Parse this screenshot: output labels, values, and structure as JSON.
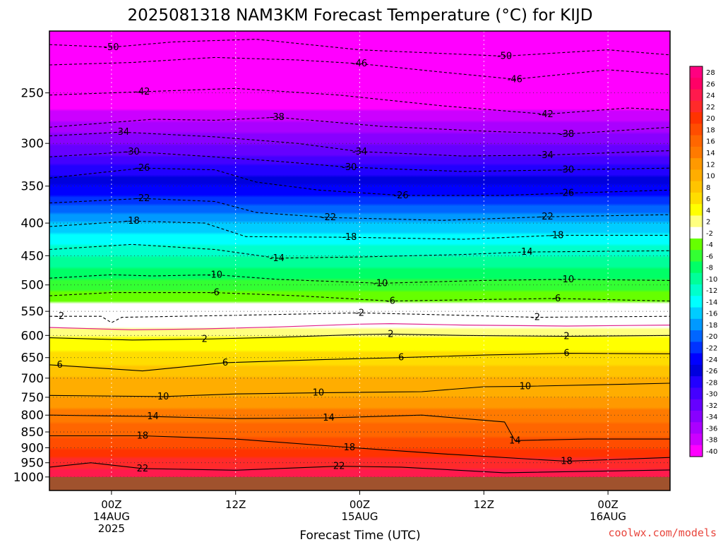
{
  "chart_data": {
    "type": "heatmap",
    "title": "2025081318 NAM3KM Forecast Temperature (°C) for KIJD",
    "xlabel": "Forecast Time (UTC)",
    "ylabel": "",
    "x_ticks": [
      {
        "hour": 6,
        "lines": [
          "00Z",
          "14AUG",
          "2025"
        ]
      },
      {
        "hour": 18,
        "lines": [
          "12Z"
        ]
      },
      {
        "hour": 30,
        "lines": [
          "00Z",
          "15AUG"
        ]
      },
      {
        "hour": 42,
        "lines": [
          "12Z"
        ]
      },
      {
        "hour": 54,
        "lines": [
          "00Z",
          "16AUG"
        ]
      }
    ],
    "xlim": [
      0,
      60
    ],
    "y_scale": "log",
    "ylim": [
      1050,
      200
    ],
    "y_ticks": [
      250,
      300,
      350,
      400,
      450,
      500,
      550,
      600,
      650,
      700,
      750,
      800,
      850,
      900,
      950,
      1000
    ],
    "grid": "dotted",
    "colorbar": {
      "labels": [
        28,
        26,
        24,
        22,
        20,
        18,
        16,
        14,
        12,
        10,
        8,
        6,
        4,
        2,
        -2,
        -4,
        -6,
        -8,
        -10,
        -12,
        -14,
        -16,
        -18,
        -20,
        -22,
        -24,
        -26,
        -28,
        -30,
        -32,
        -34,
        -36,
        -38,
        -40
      ],
      "colors": [
        "#ff0080",
        "#ff0066",
        "#ff1a4d",
        "#ff2a2a",
        "#ff3300",
        "#ff4d00",
        "#ff6600",
        "#ff7a00",
        "#ff9900",
        "#ffad00",
        "#ffc400",
        "#ffdd00",
        "#ffff00",
        "#ffff80",
        "#ffffff",
        "#66ff00",
        "#33ff33",
        "#00ff66",
        "#00ff99",
        "#00ffcc",
        "#00ffff",
        "#00ccff",
        "#0099ff",
        "#0066ff",
        "#0033ff",
        "#0000ff",
        "#0000dd",
        "#2200ff",
        "#4400ff",
        "#6600ff",
        "#8800ff",
        "#aa00ff",
        "#cc00ff",
        "#ff00ff"
      ]
    },
    "temperature_profile": [
      {
        "p": 1000,
        "t": 25
      },
      {
        "p": 950,
        "t": 22
      },
      {
        "p": 900,
        "t": 19
      },
      {
        "p": 850,
        "t": 16
      },
      {
        "p": 800,
        "t": 14
      },
      {
        "p": 750,
        "t": 11
      },
      {
        "p": 700,
        "t": 9
      },
      {
        "p": 650,
        "t": 6
      },
      {
        "p": 600,
        "t": 3
      },
      {
        "p": 560,
        "t": 0
      },
      {
        "p": 500,
        "t": -6
      },
      {
        "p": 450,
        "t": -11
      },
      {
        "p": 400,
        "t": -17
      },
      {
        "p": 350,
        "t": -25
      },
      {
        "p": 300,
        "t": -33
      },
      {
        "p": 250,
        "t": -42
      },
      {
        "p": 200,
        "t": -50
      }
    ],
    "contours": [
      {
        "label": "-50",
        "style": "dashed",
        "labels_at": [
          [
            6,
            212
          ],
          [
            44,
            219
          ]
        ],
        "points": [
          [
            0,
            210
          ],
          [
            6,
            212
          ],
          [
            12,
            208
          ],
          [
            20,
            206
          ],
          [
            30,
            214
          ],
          [
            44,
            219
          ],
          [
            54,
            214
          ],
          [
            60,
            218
          ]
        ]
      },
      {
        "label": "-46",
        "style": "dashed",
        "labels_at": [
          [
            30,
            225
          ],
          [
            45,
            238
          ]
        ],
        "points": [
          [
            0,
            226
          ],
          [
            8,
            224
          ],
          [
            16,
            220
          ],
          [
            24,
            222
          ],
          [
            30,
            225
          ],
          [
            38,
            232
          ],
          [
            45,
            238
          ],
          [
            54,
            230
          ],
          [
            60,
            234
          ]
        ]
      },
      {
        "label": "-42",
        "style": "dashed",
        "labels_at": [
          [
            9,
            249
          ],
          [
            48,
            270
          ]
        ],
        "points": [
          [
            0,
            252
          ],
          [
            9,
            249
          ],
          [
            18,
            246
          ],
          [
            28,
            252
          ],
          [
            38,
            262
          ],
          [
            48,
            270
          ],
          [
            56,
            264
          ],
          [
            60,
            266
          ]
        ]
      },
      {
        "label": "-38",
        "style": "dashed",
        "labels_at": [
          [
            22,
            273
          ],
          [
            50,
            290
          ]
        ],
        "points": [
          [
            0,
            283
          ],
          [
            10,
            275
          ],
          [
            16,
            276
          ],
          [
            22,
            273
          ],
          [
            32,
            282
          ],
          [
            42,
            287
          ],
          [
            50,
            290
          ],
          [
            60,
            283
          ]
        ]
      },
      {
        "label": "-34",
        "style": "dashed",
        "labels_at": [
          [
            7,
            288
          ],
          [
            30,
            309
          ],
          [
            48,
            313
          ]
        ],
        "points": [
          [
            0,
            292
          ],
          [
            7,
            288
          ],
          [
            16,
            293
          ],
          [
            24,
            300
          ],
          [
            30,
            309
          ],
          [
            40,
            314
          ],
          [
            48,
            313
          ],
          [
            60,
            308
          ]
        ]
      },
      {
        "label": "-30",
        "style": "dashed",
        "labels_at": [
          [
            8,
            309
          ],
          [
            29,
            327
          ],
          [
            50,
            330
          ]
        ],
        "points": [
          [
            0,
            315
          ],
          [
            8,
            309
          ],
          [
            16,
            315
          ],
          [
            22,
            320
          ],
          [
            29,
            327
          ],
          [
            40,
            332
          ],
          [
            50,
            330
          ],
          [
            60,
            328
          ]
        ]
      },
      {
        "label": "-26",
        "style": "dashed",
        "labels_at": [
          [
            9,
            328
          ],
          [
            34,
            362
          ],
          [
            50,
            359
          ]
        ],
        "points": [
          [
            0,
            340
          ],
          [
            9,
            328
          ],
          [
            16,
            330
          ],
          [
            20,
            345
          ],
          [
            26,
            355
          ],
          [
            34,
            362
          ],
          [
            44,
            362
          ],
          [
            50,
            359
          ],
          [
            60,
            355
          ]
        ]
      },
      {
        "label": "-22",
        "style": "dashed",
        "labels_at": [
          [
            9,
            366
          ],
          [
            27,
            392
          ],
          [
            48,
            391
          ]
        ],
        "points": [
          [
            0,
            372
          ],
          [
            9,
            366
          ],
          [
            16,
            370
          ],
          [
            20,
            385
          ],
          [
            27,
            392
          ],
          [
            38,
            396
          ],
          [
            48,
            391
          ],
          [
            60,
            388
          ]
        ]
      },
      {
        "label": "-18",
        "style": "dashed",
        "labels_at": [
          [
            8,
            397
          ],
          [
            29,
            421
          ],
          [
            49,
            418
          ]
        ],
        "points": [
          [
            0,
            405
          ],
          [
            8,
            397
          ],
          [
            15,
            400
          ],
          [
            19,
            420
          ],
          [
            29,
            421
          ],
          [
            40,
            424
          ],
          [
            49,
            418
          ],
          [
            60,
            418
          ]
        ]
      },
      {
        "label": "-14",
        "style": "dashed",
        "labels_at": [
          [
            22,
            454
          ],
          [
            46,
            444
          ]
        ],
        "points": [
          [
            0,
            440
          ],
          [
            8,
            432
          ],
          [
            16,
            440
          ],
          [
            22,
            454
          ],
          [
            30,
            452
          ],
          [
            40,
            448
          ],
          [
            46,
            444
          ],
          [
            60,
            442
          ]
        ]
      },
      {
        "label": "-10",
        "style": "dashed",
        "labels_at": [
          [
            16,
            482
          ],
          [
            32,
            497
          ],
          [
            50,
            490
          ]
        ],
        "points": [
          [
            0,
            488
          ],
          [
            6,
            482
          ],
          [
            10,
            484
          ],
          [
            16,
            482
          ],
          [
            22,
            490
          ],
          [
            32,
            497
          ],
          [
            42,
            492
          ],
          [
            50,
            490
          ],
          [
            60,
            492
          ]
        ]
      },
      {
        "label": "-6",
        "style": "dashed",
        "labels_at": [
          [
            16,
            514
          ],
          [
            33,
            530
          ],
          [
            49,
            525
          ]
        ],
        "points": [
          [
            0,
            520
          ],
          [
            6,
            514
          ],
          [
            16,
            514
          ],
          [
            24,
            520
          ],
          [
            33,
            530
          ],
          [
            42,
            527
          ],
          [
            49,
            525
          ],
          [
            60,
            530
          ]
        ]
      },
      {
        "label": "-2",
        "style": "dashed",
        "labels_at": [
          [
            1,
            560
          ],
          [
            30,
            553
          ],
          [
            47,
            562
          ]
        ],
        "points": [
          [
            0,
            560
          ],
          [
            5,
            560
          ],
          [
            6,
            573
          ],
          [
            7,
            562
          ],
          [
            18,
            558
          ],
          [
            30,
            553
          ],
          [
            40,
            558
          ],
          [
            47,
            562
          ],
          [
            60,
            560
          ]
        ]
      },
      {
        "label": "2",
        "style": "solid",
        "labels_at": [
          [
            15,
            608
          ],
          [
            33,
            597
          ],
          [
            50,
            602
          ]
        ],
        "points": [
          [
            0,
            605
          ],
          [
            8,
            610
          ],
          [
            15,
            608
          ],
          [
            22,
            604
          ],
          [
            30,
            598
          ],
          [
            33,
            597
          ],
          [
            40,
            600
          ],
          [
            50,
            602
          ],
          [
            60,
            600
          ]
        ]
      },
      {
        "label": "6",
        "style": "solid",
        "labels_at": [
          [
            1,
            667
          ],
          [
            17,
            662
          ],
          [
            34,
            650
          ],
          [
            50,
            640
          ]
        ],
        "points": [
          [
            0,
            667
          ],
          [
            9,
            682
          ],
          [
            17,
            662
          ],
          [
            26,
            655
          ],
          [
            34,
            650
          ],
          [
            42,
            644
          ],
          [
            50,
            640
          ],
          [
            60,
            641
          ]
        ]
      },
      {
        "label": "10",
        "style": "solid",
        "labels_at": [
          [
            11,
            748
          ],
          [
            26,
            738
          ],
          [
            46,
            721
          ]
        ],
        "points": [
          [
            0,
            745
          ],
          [
            11,
            748
          ],
          [
            18,
            741
          ],
          [
            26,
            738
          ],
          [
            36,
            735
          ],
          [
            42,
            722
          ],
          [
            46,
            721
          ],
          [
            60,
            713
          ]
        ]
      },
      {
        "label": "14",
        "style": "solid",
        "labels_at": [
          [
            10,
            804
          ],
          [
            27,
            808
          ],
          [
            45,
            877
          ]
        ],
        "points": [
          [
            0,
            800
          ],
          [
            10,
            804
          ],
          [
            18,
            810
          ],
          [
            27,
            808
          ],
          [
            36,
            800
          ],
          [
            44,
            820
          ],
          [
            45,
            877
          ],
          [
            52,
            872
          ],
          [
            60,
            872
          ]
        ]
      },
      {
        "label": "18",
        "style": "solid",
        "labels_at": [
          [
            9,
            862
          ],
          [
            29,
            899
          ],
          [
            50,
            945
          ]
        ],
        "points": [
          [
            0,
            862
          ],
          [
            9,
            862
          ],
          [
            18,
            872
          ],
          [
            29,
            899
          ],
          [
            38,
            920
          ],
          [
            50,
            945
          ],
          [
            60,
            932
          ]
        ]
      },
      {
        "label": "22",
        "style": "solid",
        "labels_at": [
          [
            9,
            970
          ],
          [
            28,
            962
          ]
        ],
        "points": [
          [
            0,
            965
          ],
          [
            4,
            950
          ],
          [
            9,
            970
          ],
          [
            18,
            976
          ],
          [
            28,
            962
          ],
          [
            34,
            965
          ],
          [
            44,
            985
          ],
          [
            60,
            975
          ]
        ]
      }
    ],
    "ground": {
      "pressure": 1000,
      "color": "#a0522d"
    }
  },
  "credit": "coolwx.com/models",
  "colors": {
    "credit": "#e8453c",
    "ground": "#a0522d"
  }
}
